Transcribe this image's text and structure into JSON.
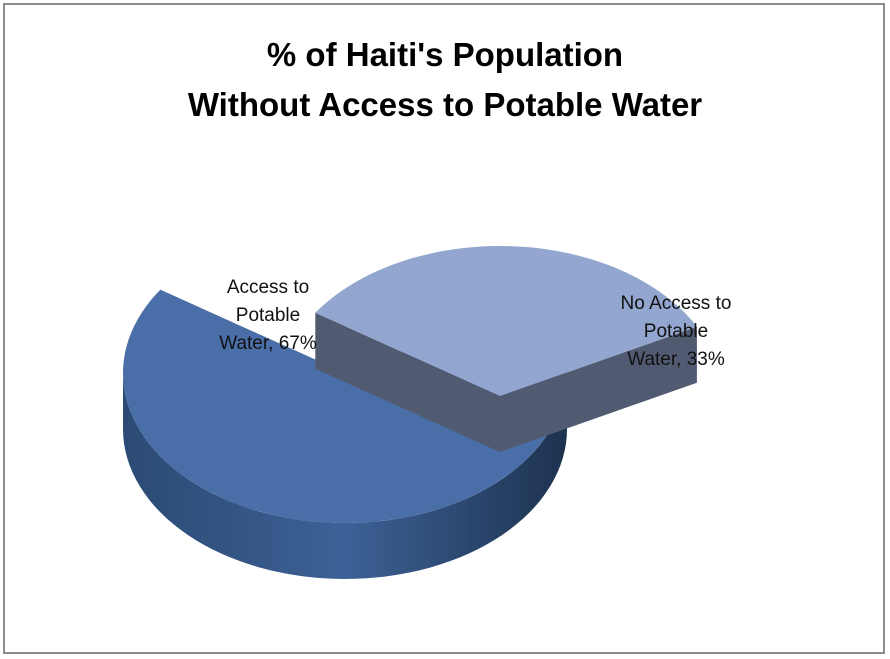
{
  "chart_data": {
    "type": "pie",
    "style": "3d-exploded",
    "title_lines": [
      "% of Haiti's Population",
      "Without Access to Potable Water"
    ],
    "slices": [
      {
        "name": "Access to Potable Water",
        "value": 67,
        "label_lines": [
          "Access to",
          "Potable",
          "Water, 67%"
        ],
        "color": "#4a6fa8"
      },
      {
        "name": "No Access to Potable Water",
        "value": 33,
        "label_lines": [
          "No Access to",
          "Potable",
          "Water, 33%"
        ],
        "color": "#92a6cf"
      }
    ],
    "legend": false
  }
}
